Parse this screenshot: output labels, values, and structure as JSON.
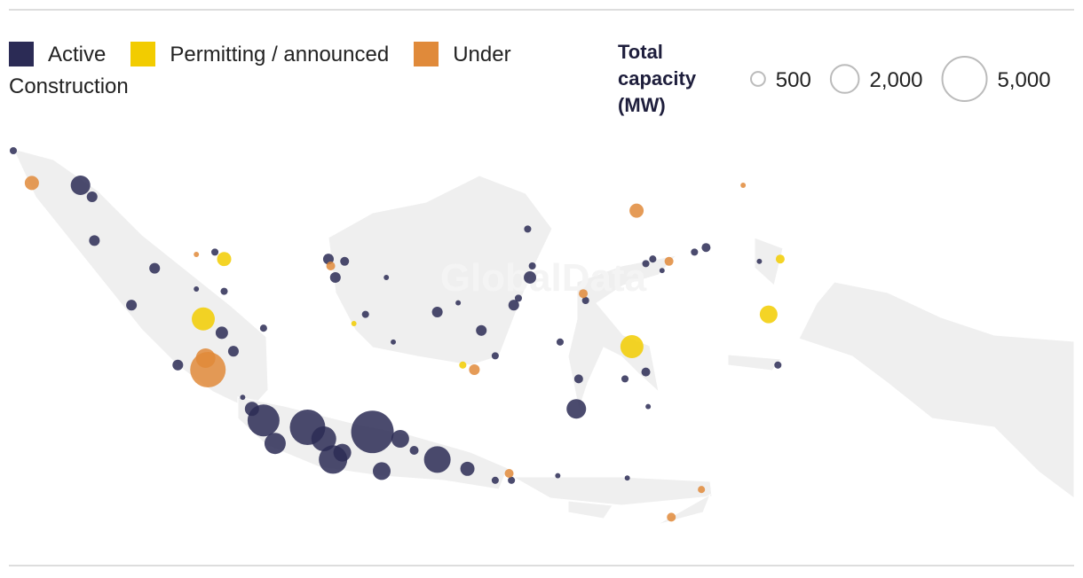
{
  "chart_data": {
    "type": "bubble-map",
    "watermark": "GlobalData",
    "size_legend": {
      "title": "Total capacity (MW)",
      "values": [
        {
          "value": 500,
          "label": "500"
        },
        {
          "value": 2000,
          "label": "2,000"
        },
        {
          "value": 5000,
          "label": "5,000"
        }
      ]
    },
    "series": [
      {
        "name": "Active",
        "color": "#2b2b55",
        "lon": [
          95.3,
          98.2,
          98.7,
          98.8,
          101.4,
          100.4,
          103.2,
          104.4,
          104.0,
          104.3,
          104.8,
          106.1,
          102.4,
          105.2,
          106.1,
          105.6,
          108.0,
          108.7,
          106.6,
          109.1,
          109.5,
          110.8,
          112.0,
          111.2,
          112.6,
          113.6,
          114.9,
          116.1,
          116.8,
          118.8,
          121.8,
          108.9,
          109.6,
          109.2,
          111.4,
          110.5,
          111.7,
          113.6,
          114.5,
          115.5,
          116.1,
          116.9,
          117.1,
          117.6,
          117.7,
          117.5,
          118.9,
          120.0,
          119.7,
          119.6,
          121.7,
          122.6,
          122.7,
          122.6,
          122.9,
          123.3,
          124.7,
          125.2,
          127.5,
          128.3
        ],
        "lat": [
          5.5,
          4.0,
          3.5,
          1.6,
          0.4,
          -1.2,
          -0.5,
          -0.6,
          1.1,
          -2.4,
          -3.2,
          -2.2,
          -3.8,
          -5.2,
          -6.2,
          -5.7,
          -6.5,
          -7.0,
          -7.2,
          -7.9,
          -7.6,
          -6.7,
          -7.0,
          -8.4,
          -7.5,
          -7.9,
          -8.3,
          -8.8,
          -8.8,
          -8.6,
          -8.7,
          0.8,
          0.7,
          0.0,
          0.0,
          -1.6,
          -2.8,
          -1.5,
          -1.1,
          -2.3,
          -3.4,
          -1.2,
          -0.9,
          0.0,
          0.5,
          2.1,
          -2.8,
          -1.0,
          -4.4,
          -5.7,
          -4.4,
          -4.1,
          -5.6,
          0.6,
          0.8,
          0.3,
          1.1,
          1.3,
          0.7,
          -3.8
        ],
        "capacity": [
          130,
          970,
          290,
          290,
          290,
          290,
          70,
          130,
          130,
          390,
          290,
          130,
          290,
          70,
          2590,
          510,
          3200,
          1570,
          1150,
          2050,
          800,
          4600,
          800,
          800,
          200,
          1800,
          510,
          130,
          130,
          70,
          70,
          290,
          200,
          290,
          70,
          130,
          70,
          290,
          70,
          290,
          130,
          290,
          130,
          390,
          130,
          130,
          130,
          130,
          200,
          970,
          130,
          200,
          70,
          130,
          130,
          70,
          130,
          200,
          70,
          130
        ]
      },
      {
        "name": "Permitting / announced",
        "color": "#f2cc00",
        "lon": [
          104.4,
          103.5,
          110.0,
          114.7,
          122.0,
          128.4,
          127.9
        ],
        "lat": [
          0.8,
          -1.8,
          -2.0,
          -3.8,
          -3.0,
          0.8,
          -1.6
        ],
        "capacity": [
          510,
          1350,
          70,
          130,
          1350,
          200,
          800
        ]
      },
      {
        "name": "Under Construction",
        "color": "#e08a3a",
        "lon": [
          96.1,
          103.7,
          103.6,
          103.2,
          109.0,
          115.2,
          116.7,
          119.9,
          122.2,
          123.6,
          126.8,
          123.7,
          125.0
        ],
        "lat": [
          4.1,
          -4.0,
          -3.5,
          1.0,
          0.5,
          -4.0,
          -8.5,
          -0.7,
          2.9,
          0.7,
          4.0,
          -10.4,
          -9.2
        ],
        "capacity": [
          510,
          3200,
          970,
          70,
          200,
          290,
          200,
          200,
          510,
          200,
          70,
          200,
          130
        ]
      }
    ]
  }
}
